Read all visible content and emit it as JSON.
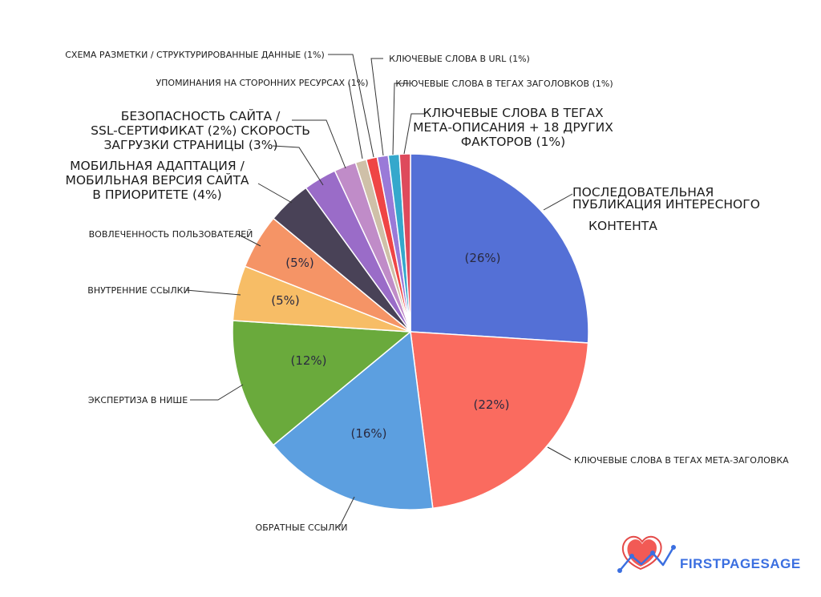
{
  "chart_data": {
    "type": "pie",
    "title": "",
    "slices": [
      {
        "id": "content",
        "value": 26,
        "pct_label": "(26%)",
        "label_lines": [
          "последовательная",
          "публикация интересного",
          "контента"
        ],
        "color": "#5470d6"
      },
      {
        "id": "title-tag",
        "value": 22,
        "pct_label": "(22%)",
        "label_lines": [
          "ключевые слова в тегах мета-заголовка"
        ],
        "color": "#fa6b5f"
      },
      {
        "id": "backlinks",
        "value": 16,
        "pct_label": "(16%)",
        "label_lines": [
          "обратные ссылки"
        ],
        "color": "#5c9fe0"
      },
      {
        "id": "niche",
        "value": 12,
        "pct_label": "(12%)",
        "label_lines": [
          "экспертиза в нише"
        ],
        "color": "#6aaa3c"
      },
      {
        "id": "internal-links",
        "value": 5,
        "pct_label": "(5%)",
        "label_lines": [
          "внутренние ссылки"
        ],
        "color": "#f7bd66"
      },
      {
        "id": "engagement",
        "value": 5,
        "pct_label": "(5%)",
        "label_lines": [
          "вовлеченность пользователей"
        ],
        "color": "#f59466"
      },
      {
        "id": "mobile",
        "value": 4,
        "pct_label": "",
        "label_lines": [
          "мобильная адаптация /",
          "мобильная версия сайта",
          "в приоритете (4%)"
        ],
        "color": "#494257"
      },
      {
        "id": "speed",
        "value": 3,
        "pct_label": "",
        "label_lines": [
          "загрузки страницы (3%)"
        ],
        "color": "#9a6cc8"
      },
      {
        "id": "ssl",
        "value": 2,
        "pct_label": "",
        "label_lines": [
          "безопасность сайта /",
          "ssl-сертификат (2%) скорость"
        ],
        "color": "#c08cc8"
      },
      {
        "id": "mentions",
        "value": 1,
        "pct_label": "",
        "label_lines": [
          "упоминания на сторонних ресурсах (1%)"
        ],
        "color": "#cfc0a8"
      },
      {
        "id": "schema",
        "value": 1,
        "pct_label": "",
        "label_lines": [
          "схема разметки / структурированные данные (1%)"
        ],
        "color": "#ef4545"
      },
      {
        "id": "url",
        "value": 1,
        "pct_label": "",
        "label_lines": [
          "ключевые слова в url (1%)"
        ],
        "color": "#9a7ad8"
      },
      {
        "id": "headings",
        "value": 1,
        "pct_label": "",
        "label_lines": [
          "ключевые слова в тегах заголовков (1%)"
        ],
        "color": "#35a8cc"
      },
      {
        "id": "meta-desc",
        "value": 1,
        "pct_label": "",
        "label_lines": [
          "ключевые слова в тегах",
          "мета-описания + 18 других",
          "факторов (1%)"
        ],
        "color": "#de4a5c"
      }
    ]
  },
  "brand": {
    "name": "FIRSTPAGESAGE",
    "color": "#3b6fe0"
  }
}
